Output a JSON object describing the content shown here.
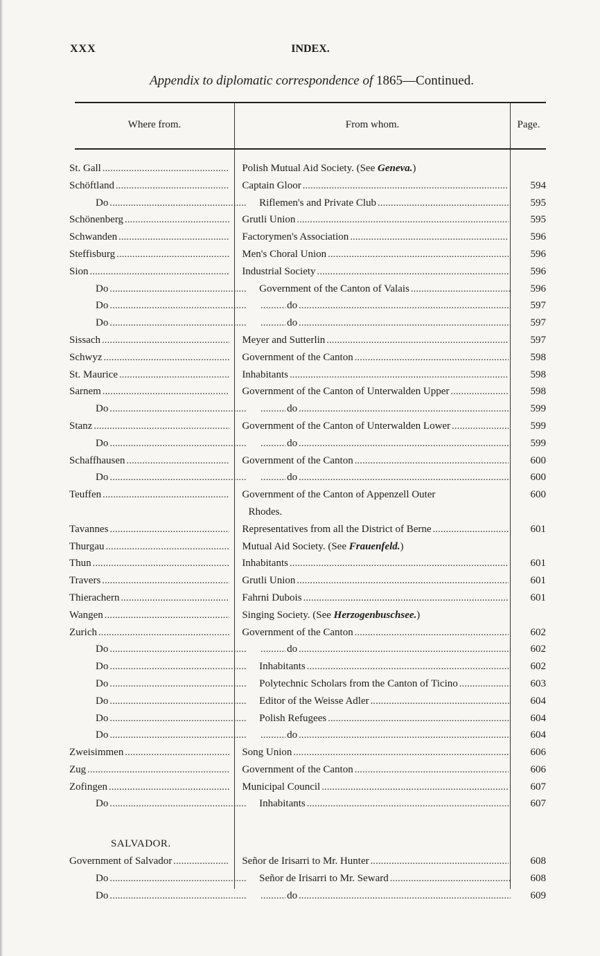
{
  "page": {
    "folio": "XXX",
    "running_head": "INDEX."
  },
  "subtitle": {
    "italic": "Appendix to diplomatic correspondence of",
    "year": "1865",
    "rest": "—Continued."
  },
  "columns": {
    "where": "Where from.",
    "whom": "From whom.",
    "page": "Page."
  },
  "rows": [
    {
      "where": "St. Gall",
      "whom": "Polish Mutual Aid Society.  (See",
      "see": "Geneva.",
      "close": ")",
      "page": ""
    },
    {
      "where": "Schöftland",
      "whom": "Captain Gloor",
      "page": "594"
    },
    {
      "where": "Do",
      "indent": true,
      "whom": "Riflemen's and Private Club",
      "page": "595"
    },
    {
      "where": "Schönenberg",
      "whom": "Grutli Union",
      "page": "595"
    },
    {
      "where": "Schwanden",
      "whom": "Factorymen's Association",
      "page": "596"
    },
    {
      "where": "Steffisburg",
      "whom": "Men's Choral Union",
      "page": "596"
    },
    {
      "where": "Sion",
      "whom": "Industrial Society",
      "page": "596"
    },
    {
      "where": "Do",
      "indent": true,
      "whom": "Government of the Canton of Valais",
      "page": "596"
    },
    {
      "where": "Do",
      "indent": true,
      "whom": "do",
      "ditto": true,
      "page": "597"
    },
    {
      "where": "Do",
      "indent": true,
      "whom": "do",
      "ditto": true,
      "page": "597"
    },
    {
      "where": "Sissach",
      "whom": "Meyer and Sutterlin",
      "page": "597"
    },
    {
      "where": "Schwyz",
      "whom": "Government of the Canton",
      "page": "598"
    },
    {
      "where": "St. Maurice",
      "whom": "Inhabitants",
      "page": "598"
    },
    {
      "where": "Sarnem",
      "whom": "Government of the Canton of Unterwalden Upper",
      "page": "598"
    },
    {
      "where": "Do",
      "indent": true,
      "whom": "do",
      "ditto": true,
      "page": "599"
    },
    {
      "where": "Stanz",
      "whom": "Government of the Canton of Unterwalden Lower",
      "page": "599"
    },
    {
      "where": "Do",
      "indent": true,
      "whom": "do",
      "ditto": true,
      "page": "599"
    },
    {
      "where": "Schaffhausen",
      "whom": "Government of the Canton",
      "page": "600"
    },
    {
      "where": "Do",
      "indent": true,
      "whom": "do",
      "ditto": true,
      "page": "600"
    },
    {
      "where": "Teuffen",
      "whom": "Government of the Canton of Appenzell Outer",
      "cont": "Rhodes.",
      "page": "600"
    },
    {
      "where": "Tavannes",
      "whom": "Representatives from all the District of Berne",
      "page": "601"
    },
    {
      "where": "Thurgau",
      "whom": "Mutual Aid Society.  (See",
      "see": "Frauenfeld.",
      "close": ")",
      "page": ""
    },
    {
      "where": "Thun",
      "whom": "Inhabitants",
      "page": "601"
    },
    {
      "where": "Travers",
      "whom": "Grutli Union",
      "page": "601"
    },
    {
      "where": "Thierachern",
      "whom": "Fahrni Dubois",
      "page": "601"
    },
    {
      "where": "Wangen",
      "whom": "Singing Society.  (See",
      "see": "Herzogenbuschsee.",
      "close": ")",
      "page": ""
    },
    {
      "where": "Zurich",
      "whom": "Government of the Canton",
      "page": "602"
    },
    {
      "where": "Do",
      "indent": true,
      "whom": "do",
      "ditto": true,
      "page": "602"
    },
    {
      "where": "Do",
      "indent": true,
      "whom": "Inhabitants",
      "page": "602"
    },
    {
      "where": "Do",
      "indent": true,
      "whom": "Polytechnic Scholars from the Canton of Ticino",
      "page": "603"
    },
    {
      "where": "Do",
      "indent": true,
      "whom": "Editor of the Weisse Adler",
      "page": "604"
    },
    {
      "where": "Do",
      "indent": true,
      "whom": "Polish Refugees",
      "page": "604"
    },
    {
      "where": "Do",
      "indent": true,
      "whom": "do",
      "ditto": true,
      "page": "604"
    },
    {
      "where": "Zweisimmen",
      "whom": "Song Union",
      "page": "606"
    },
    {
      "where": "Zug",
      "whom": "Government of the Canton",
      "page": "606"
    },
    {
      "where": "Zofingen",
      "whom": "Municipal Council",
      "page": "607"
    },
    {
      "where": "Do",
      "indent": true,
      "whom": "Inhabitants",
      "page": "607"
    },
    {
      "heading": "SALVADOR."
    },
    {
      "where": "Government of Salvador",
      "whom": "Señor de Irisarri to Mr. Hunter",
      "page": "608"
    },
    {
      "where": "Do",
      "indent": true,
      "whom": "Señor de Irisarri to Mr. Seward",
      "page": "608"
    },
    {
      "where": "Do",
      "indent": true,
      "whom": "do",
      "ditto": true,
      "page": "609"
    }
  ]
}
